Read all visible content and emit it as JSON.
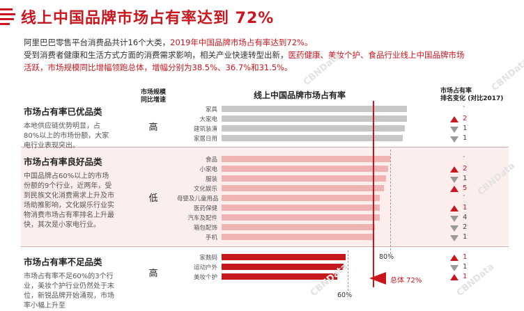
{
  "title": "线上中国品牌市场占有率达到 72%",
  "intro": {
    "line1_plain": "阿里巴巴零售平台消费品共计16个大类，",
    "line1_red": "2019年中国品牌市场占有率达到72%。",
    "line2_plain": "受到消费者健康和生活方式方面的消费需求影响，相关产业快速转型出新，",
    "line2_red": "医药健康、美妆个护、食品行业线上中国品牌市场",
    "line3_red": "活跃，市场规模同比增幅领跑总体，增幅分别为38.5%、36.7%和31.5%。"
  },
  "headers": {
    "growth": "市场规模\n同比增速",
    "chart": "线上中国品牌市场占有率",
    "rank": "市场占有率\n排名变化 (对比2017)"
  },
  "sections": [
    {
      "title": "市场占有率已优品类",
      "desc": "本地供应链优势明显，占80%以上的市场份额，大家电行业表现突出。",
      "growth": "高"
    },
    {
      "title": "市场占有率良好品类",
      "desc": "中国品牌占60%以上的市场份额的9个行业，近两年，受到民族文化消费需求上升及市场助推影响，文化娱乐行业实物消费市场占有率排名上升最快，其次是小家电行业。",
      "growth": "低"
    },
    {
      "title": "市场占有率不足品类",
      "desc": "市场占有率不足60%的3个行业，美妆个护行业仍然处于末位，新锐品牌开始涌现，市场率小幅上升至",
      "growth": "高"
    }
  ],
  "axis_notes": {
    "p80": "80%",
    "p60": "60%",
    "total": "总体 72%"
  },
  "colors": {
    "accent": "#c8171e",
    "gray_bar": "#c7c7c7",
    "pink_bar": "#f0b3b3",
    "red_bar": "#c41a1d"
  },
  "chart_data": {
    "type": "bar",
    "orientation": "horizontal",
    "title": "线上中国品牌市场占有率",
    "categories": [
      "家具",
      "大家电",
      "建筑装潢",
      "家居日用",
      "食品",
      "小家电",
      "服装",
      "文化娱乐",
      "母婴及儿童用品",
      "医药保健",
      "汽车及配件",
      "箱包配饰",
      "手机",
      "家数码",
      "运动户外",
      "美妆个护"
    ],
    "values": [
      88,
      88,
      87,
      86,
      80,
      79,
      78,
      77,
      75,
      75,
      75,
      73,
      72,
      59,
      58,
      55
    ],
    "group": [
      "优",
      "优",
      "优",
      "优",
      "良",
      "良",
      "良",
      "良",
      "良",
      "良",
      "良",
      "良",
      "良",
      "不足",
      "不足",
      "不足"
    ],
    "reference_lines": [
      {
        "label": "80%",
        "value": 80
      },
      {
        "label": "60%",
        "value": 60
      },
      {
        "label": "总体 72%",
        "value": 72
      }
    ],
    "rank_change": [
      {
        "dir": "none",
        "value": "-"
      },
      {
        "dir": "up",
        "value": "2"
      },
      {
        "dir": "down",
        "value": "1"
      },
      {
        "dir": "down",
        "value": "1"
      },
      {
        "dir": "none",
        "value": "-"
      },
      {
        "dir": "up",
        "value": "2"
      },
      {
        "dir": "down",
        "value": "1"
      },
      {
        "dir": "up",
        "value": "5"
      },
      {
        "dir": "none",
        "value": "-"
      },
      {
        "dir": "up",
        "value": "1"
      },
      {
        "dir": "down",
        "value": "4"
      },
      {
        "dir": "down",
        "value": "2"
      },
      {
        "dir": "down",
        "value": "1"
      },
      {
        "dir": "up",
        "value": "1"
      },
      {
        "dir": "down",
        "value": "1"
      },
      {
        "dir": "up",
        "value": "1"
      }
    ]
  },
  "watermarks": [
    "CBNData",
    "CBNData",
    "CBNData",
    "CBNData",
    "CBNData"
  ]
}
